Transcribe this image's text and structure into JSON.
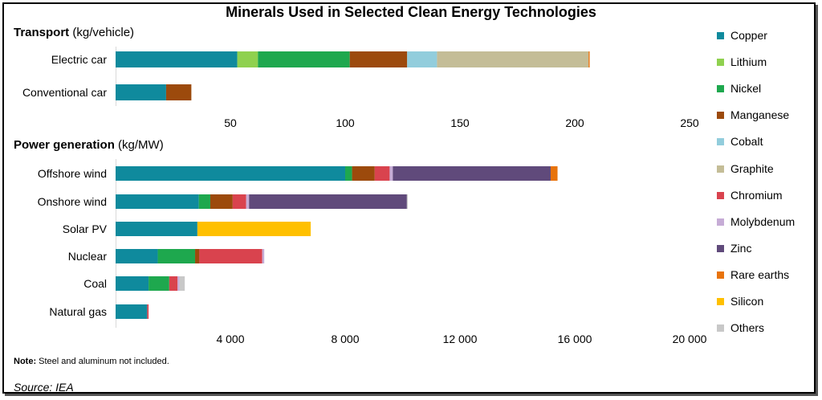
{
  "title": "Minerals Used in Selected Clean Energy Technologies",
  "note": {
    "label": "Note:",
    "text": " Steel and aluminum not included."
  },
  "source": "Source: IEA",
  "colors": {
    "Copper": "#0f8a9d",
    "Lithium": "#8fd14f",
    "Nickel": "#1ea84e",
    "Manganese": "#9c4a0c",
    "Cobalt": "#92cddc",
    "Graphite": "#c4bd97",
    "Chromium": "#d9434e",
    "Molybdenum": "#c6acd6",
    "Zinc": "#604a7b",
    "Rare earths": "#e8730c",
    "Silicon": "#ffc000",
    "Others": "#c8c8c8"
  },
  "legend": [
    "Copper",
    "Lithium",
    "Nickel",
    "Manganese",
    "Cobalt",
    "Graphite",
    "Chromium",
    "Molybdenum",
    "Zinc",
    "Rare earths",
    "Silicon",
    "Others"
  ],
  "chart_data": [
    {
      "type": "bar",
      "orientation": "horizontal",
      "stacked": true,
      "title": "Transport",
      "unit_label": "(kg/vehicle)",
      "categories": [
        "Electric car",
        "Conventional car"
      ],
      "xlim": [
        0,
        250
      ],
      "xticks": [
        50,
        100,
        150,
        200,
        250
      ],
      "tick_labels": [
        "50",
        "100",
        "150",
        "200",
        "250"
      ],
      "series": [
        {
          "name": "Copper",
          "values": [
            53,
            22
          ]
        },
        {
          "name": "Lithium",
          "values": [
            9,
            0
          ]
        },
        {
          "name": "Nickel",
          "values": [
            40,
            0
          ]
        },
        {
          "name": "Manganese",
          "values": [
            25,
            11
          ]
        },
        {
          "name": "Cobalt",
          "values": [
            13,
            0
          ]
        },
        {
          "name": "Graphite",
          "values": [
            66,
            0
          ]
        },
        {
          "name": "Rare earths",
          "values": [
            0.5,
            0
          ]
        }
      ]
    },
    {
      "type": "bar",
      "orientation": "horizontal",
      "stacked": true,
      "title": "Power generation",
      "unit_label": "(kg/MW)",
      "categories": [
        "Offshore wind",
        "Onshore wind",
        "Solar PV",
        "Nuclear",
        "Coal",
        "Natural gas"
      ],
      "xlim": [
        0,
        20000
      ],
      "xticks": [
        4000,
        8000,
        12000,
        16000,
        20000
      ],
      "tick_labels": [
        "4 000",
        "8 000",
        "12 000",
        "16 000",
        "20 000"
      ],
      "series": [
        {
          "name": "Copper",
          "values": [
            8000,
            2900,
            2850,
            1470,
            1150,
            1100
          ]
        },
        {
          "name": "Nickel",
          "values": [
            240,
            400,
            0,
            1300,
            720,
            0
          ]
        },
        {
          "name": "Manganese",
          "values": [
            790,
            780,
            0,
            150,
            0,
            0
          ]
        },
        {
          "name": "Chromium",
          "values": [
            520,
            470,
            0,
            2190,
            290,
            50
          ]
        },
        {
          "name": "Molybdenum",
          "values": [
            110,
            100,
            0,
            70,
            70,
            0
          ]
        },
        {
          "name": "Zinc",
          "values": [
            5500,
            5500,
            0,
            0,
            0,
            0
          ]
        },
        {
          "name": "Rare earths",
          "values": [
            240,
            0,
            0,
            0,
            0,
            0
          ]
        },
        {
          "name": "Silicon",
          "values": [
            0,
            0,
            3950,
            0,
            0,
            0
          ]
        },
        {
          "name": "Others",
          "values": [
            0,
            30,
            0,
            0,
            180,
            0
          ]
        }
      ]
    }
  ]
}
